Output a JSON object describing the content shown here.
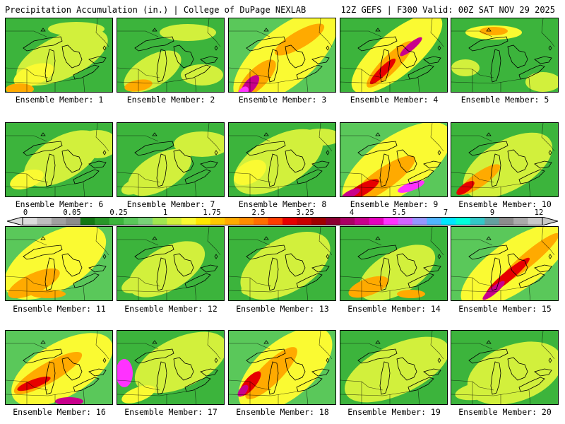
{
  "header": {
    "title_left": "Precipitation Accumulation (in.) | College of DuPage NEXLAB",
    "title_right": "12Z GEFS | F300 Valid: 00Z SAT NOV 29 2025"
  },
  "colorbar": {
    "tick_labels": [
      "0",
      "0.05",
      "0.25",
      "1",
      "1.75",
      "2.5",
      "3.25",
      "4",
      "5.5",
      "7",
      "9",
      "12"
    ],
    "colors": [
      "#dcdcdc",
      "#bebebe",
      "#a0a0a0",
      "#8c8c8c",
      "#147814",
      "#289628",
      "#3cb43c",
      "#5ac85a",
      "#78d278",
      "#a0e650",
      "#d2f03c",
      "#fafa32",
      "#ffe600",
      "#ffc800",
      "#ffaa00",
      "#ff8c00",
      "#ff6e00",
      "#ff3c00",
      "#e60000",
      "#c80000",
      "#a00000",
      "#8c0032",
      "#aa0064",
      "#c8008c",
      "#e600be",
      "#ff32ff",
      "#d264ff",
      "#9696ff",
      "#50b4ff",
      "#00e6ff",
      "#00ffdc",
      "#32c8c8",
      "#64a0a0",
      "#8c8c8c",
      "#aaaaaa",
      "#c8c8c8"
    ]
  },
  "panels": [
    {
      "label": "Ensemble Member: 1"
    },
    {
      "label": "Ensemble Member: 2"
    },
    {
      "label": "Ensemble Member: 3"
    },
    {
      "label": "Ensemble Member: 4"
    },
    {
      "label": "Ensemble Member: 5"
    },
    {
      "label": "Ensemble Member: 6"
    },
    {
      "label": "Ensemble Member: 7"
    },
    {
      "label": "Ensemble Member: 8"
    },
    {
      "label": "Ensemble Member: 9"
    },
    {
      "label": "Ensemble Member: 10"
    },
    {
      "label": "Ensemble Member: 11"
    },
    {
      "label": "Ensemble Member: 12"
    },
    {
      "label": "Ensemble Member: 13"
    },
    {
      "label": "Ensemble Member: 14"
    },
    {
      "label": "Ensemble Member: 15"
    },
    {
      "label": "Ensemble Member: 16"
    },
    {
      "label": "Ensemble Member: 17"
    },
    {
      "label": "Ensemble Member: 18"
    },
    {
      "label": "Ensemble Member: 19"
    },
    {
      "label": "Ensemble Member: 20"
    }
  ]
}
